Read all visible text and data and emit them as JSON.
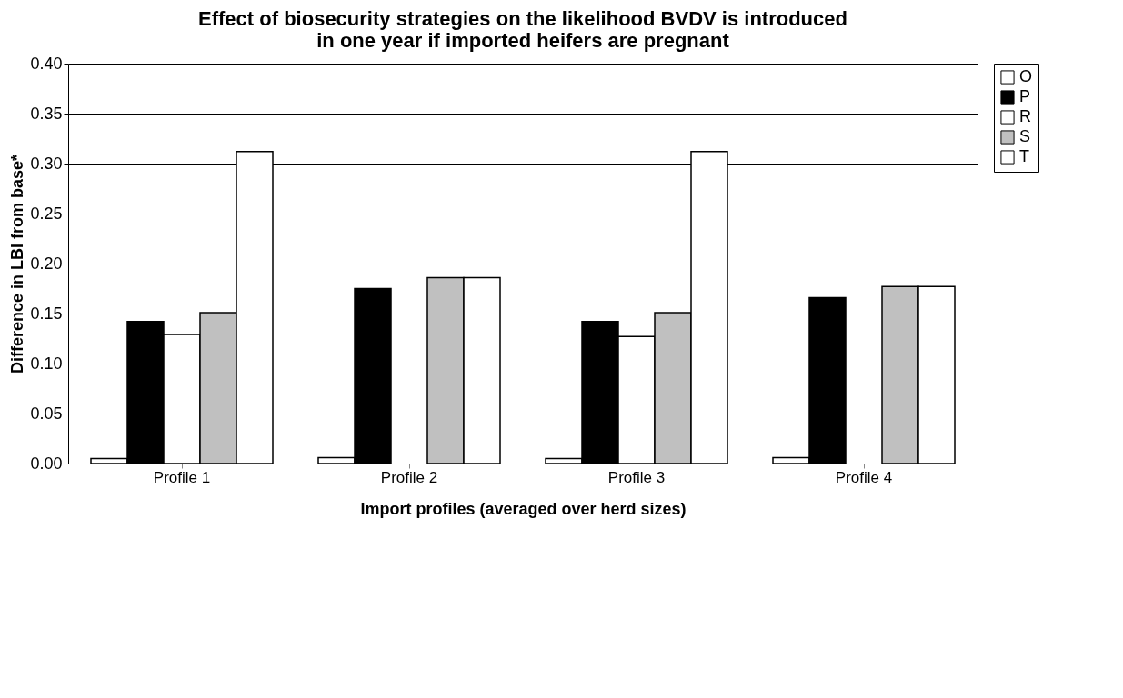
{
  "chart_data": {
    "type": "bar",
    "title": [
      "Effect of biosecurity strategies on the likelihood BVDV is introduced",
      "in one year if imported heifers are pregnant"
    ],
    "xlabel": "Import profiles (averaged over herd sizes)",
    "ylabel": "Difference in LBI from base*",
    "categories": [
      "Profile 1",
      "Profile 2",
      "Profile 3",
      "Profile 4"
    ],
    "series": [
      {
        "name": "O",
        "color": "#ffffff",
        "values": [
          0.005,
          0.006,
          0.005,
          0.006
        ]
      },
      {
        "name": "P",
        "color": "#000000",
        "values": [
          0.142,
          0.175,
          0.142,
          0.166
        ]
      },
      {
        "name": "R",
        "color": "#ffffff",
        "values": [
          0.129,
          null,
          0.127,
          null
        ]
      },
      {
        "name": "S",
        "color": "#c0c0c0",
        "values": [
          0.151,
          0.186,
          0.151,
          0.177
        ]
      },
      {
        "name": "T",
        "color": "#ffffff",
        "values": [
          0.312,
          0.186,
          0.312,
          0.177
        ]
      }
    ],
    "ylim": [
      0,
      0.4
    ],
    "yticks": [
      {
        "value": 0,
        "label": "0.00"
      },
      {
        "value": 0.05,
        "label": "0.05"
      },
      {
        "value": 0.1,
        "label": "0.10"
      },
      {
        "value": 0.15,
        "label": "0.15"
      },
      {
        "value": 0.2,
        "label": "0.20"
      },
      {
        "value": 0.25,
        "label": "0.25"
      },
      {
        "value": 0.3,
        "label": "0.30"
      },
      {
        "value": 0.35,
        "label": "0.35"
      },
      {
        "value": 0.4,
        "label": "0.40"
      }
    ],
    "grid": "y",
    "legend": "right"
  }
}
